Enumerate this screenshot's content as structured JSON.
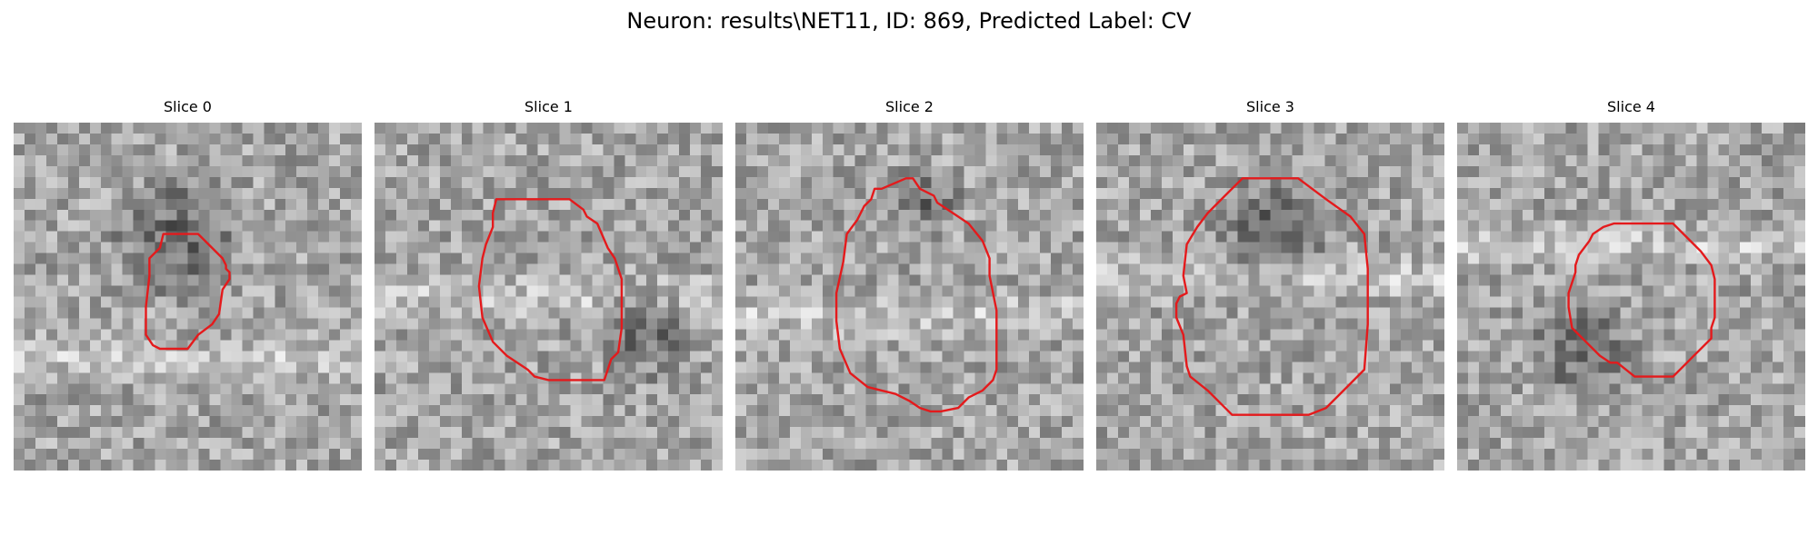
{
  "figure": {
    "title": "Neuron: results\\NET11, ID: 869, Predicted Label: CV"
  },
  "slices": [
    {
      "label": "Slice 0",
      "seed": 11,
      "dark_blob": [
        0.47,
        0.33,
        0.23
      ],
      "light_band": 0.68,
      "contour": [
        [
          0.43,
          0.32
        ],
        [
          0.53,
          0.32
        ],
        [
          0.6,
          0.39
        ],
        [
          0.61,
          0.41
        ],
        [
          0.61,
          0.42
        ],
        [
          0.62,
          0.43
        ],
        [
          0.62,
          0.45
        ],
        [
          0.6,
          0.48
        ],
        [
          0.59,
          0.55
        ],
        [
          0.57,
          0.58
        ],
        [
          0.53,
          0.61
        ],
        [
          0.5,
          0.65
        ],
        [
          0.42,
          0.65
        ],
        [
          0.4,
          0.64
        ],
        [
          0.38,
          0.61
        ],
        [
          0.38,
          0.58
        ],
        [
          0.38,
          0.53
        ],
        [
          0.39,
          0.44
        ],
        [
          0.39,
          0.39
        ],
        [
          0.42,
          0.36
        ]
      ]
    },
    {
      "label": "Slice 1",
      "seed": 23,
      "dark_blob": [
        0.78,
        0.6,
        0.17
      ],
      "light_band": 0.5,
      "contour": [
        [
          0.35,
          0.22
        ],
        [
          0.56,
          0.22
        ],
        [
          0.6,
          0.25
        ],
        [
          0.61,
          0.27
        ],
        [
          0.64,
          0.29
        ],
        [
          0.67,
          0.36
        ],
        [
          0.69,
          0.39
        ],
        [
          0.71,
          0.45
        ],
        [
          0.71,
          0.59
        ],
        [
          0.7,
          0.66
        ],
        [
          0.68,
          0.68
        ],
        [
          0.66,
          0.74
        ],
        [
          0.59,
          0.74
        ],
        [
          0.5,
          0.74
        ],
        [
          0.46,
          0.73
        ],
        [
          0.44,
          0.71
        ],
        [
          0.38,
          0.67
        ],
        [
          0.34,
          0.63
        ],
        [
          0.31,
          0.56
        ],
        [
          0.3,
          0.47
        ],
        [
          0.31,
          0.39
        ],
        [
          0.32,
          0.35
        ],
        [
          0.34,
          0.3
        ],
        [
          0.34,
          0.26
        ]
      ]
    },
    {
      "label": "Slice 2",
      "seed": 37,
      "dark_blob": [
        0.55,
        0.22,
        0.12
      ],
      "light_band": 0.55,
      "contour": [
        [
          0.42,
          0.19
        ],
        [
          0.49,
          0.16
        ],
        [
          0.51,
          0.16
        ],
        [
          0.53,
          0.19
        ],
        [
          0.57,
          0.21
        ],
        [
          0.58,
          0.23
        ],
        [
          0.67,
          0.29
        ],
        [
          0.71,
          0.34
        ],
        [
          0.73,
          0.39
        ],
        [
          0.73,
          0.44
        ],
        [
          0.75,
          0.54
        ],
        [
          0.75,
          0.64
        ],
        [
          0.75,
          0.71
        ],
        [
          0.74,
          0.74
        ],
        [
          0.71,
          0.77
        ],
        [
          0.67,
          0.79
        ],
        [
          0.64,
          0.82
        ],
        [
          0.59,
          0.83
        ],
        [
          0.56,
          0.83
        ],
        [
          0.53,
          0.82
        ],
        [
          0.5,
          0.8
        ],
        [
          0.46,
          0.78
        ],
        [
          0.42,
          0.77
        ],
        [
          0.38,
          0.76
        ],
        [
          0.33,
          0.72
        ],
        [
          0.3,
          0.65
        ],
        [
          0.29,
          0.57
        ],
        [
          0.29,
          0.49
        ],
        [
          0.31,
          0.4
        ],
        [
          0.32,
          0.32
        ],
        [
          0.35,
          0.28
        ],
        [
          0.37,
          0.24
        ],
        [
          0.39,
          0.22
        ],
        [
          0.4,
          0.19
        ]
      ]
    },
    {
      "label": "Slice 3",
      "seed": 53,
      "dark_blob": [
        0.5,
        0.3,
        0.2
      ],
      "light_band": 0.45,
      "contour": [
        [
          0.42,
          0.16
        ],
        [
          0.58,
          0.16
        ],
        [
          0.66,
          0.22
        ],
        [
          0.73,
          0.27
        ],
        [
          0.77,
          0.32
        ],
        [
          0.78,
          0.42
        ],
        [
          0.78,
          0.58
        ],
        [
          0.77,
          0.71
        ],
        [
          0.72,
          0.76
        ],
        [
          0.66,
          0.82
        ],
        [
          0.61,
          0.84
        ],
        [
          0.39,
          0.84
        ],
        [
          0.36,
          0.81
        ],
        [
          0.32,
          0.77
        ],
        [
          0.27,
          0.73
        ],
        [
          0.26,
          0.7
        ],
        [
          0.25,
          0.61
        ],
        [
          0.23,
          0.56
        ],
        [
          0.23,
          0.52
        ],
        [
          0.24,
          0.5
        ],
        [
          0.26,
          0.49
        ],
        [
          0.25,
          0.44
        ],
        [
          0.26,
          0.35
        ],
        [
          0.29,
          0.3
        ],
        [
          0.32,
          0.26
        ],
        [
          0.37,
          0.21
        ]
      ]
    },
    {
      "label": "Slice 4",
      "seed": 71,
      "dark_blob": [
        0.35,
        0.65,
        0.18
      ],
      "light_band": 0.35,
      "contour": [
        [
          0.45,
          0.29
        ],
        [
          0.62,
          0.29
        ],
        [
          0.68,
          0.35
        ],
        [
          0.7,
          0.37
        ],
        [
          0.73,
          0.41
        ],
        [
          0.74,
          0.45
        ],
        [
          0.74,
          0.56
        ],
        [
          0.73,
          0.59
        ],
        [
          0.73,
          0.62
        ],
        [
          0.7,
          0.65
        ],
        [
          0.69,
          0.66
        ],
        [
          0.68,
          0.67
        ],
        [
          0.66,
          0.69
        ],
        [
          0.62,
          0.73
        ],
        [
          0.56,
          0.73
        ],
        [
          0.51,
          0.73
        ],
        [
          0.46,
          0.69
        ],
        [
          0.44,
          0.69
        ],
        [
          0.41,
          0.67
        ],
        [
          0.37,
          0.63
        ],
        [
          0.35,
          0.61
        ],
        [
          0.33,
          0.59
        ],
        [
          0.32,
          0.53
        ],
        [
          0.32,
          0.49
        ],
        [
          0.33,
          0.46
        ],
        [
          0.34,
          0.43
        ],
        [
          0.34,
          0.41
        ],
        [
          0.35,
          0.38
        ],
        [
          0.38,
          0.34
        ],
        [
          0.39,
          0.32
        ],
        [
          0.42,
          0.3
        ]
      ]
    }
  ]
}
